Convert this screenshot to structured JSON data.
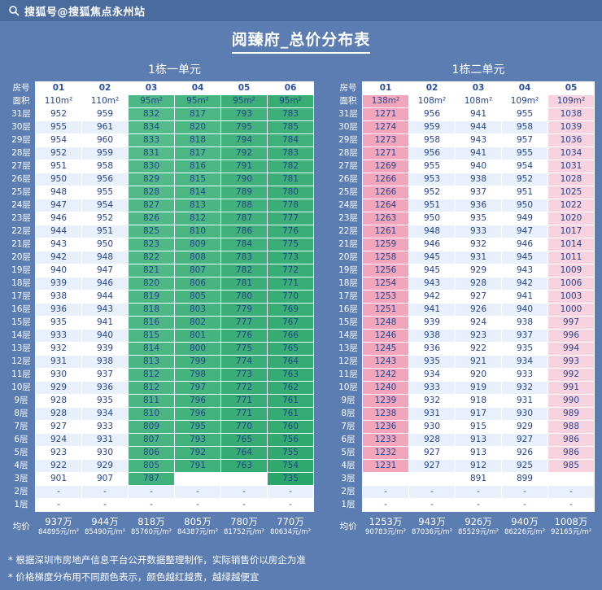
{
  "watermark": {
    "icon": "sohu-logo",
    "text": "搜狐号@搜狐焦点永州站"
  },
  "title": "阅臻府_总价分布表",
  "colors": {
    "background": "#5b7db1",
    "topbar": "#4a6b9e",
    "green_deep": "#28a569",
    "green_light": "#64c396",
    "pink_strong": "#f2a6bc",
    "pink_light": "#f8d2de",
    "cell_text": "#27448c",
    "stripe": "#e8f1fb"
  },
  "footnotes": [
    "* 根据深圳市房地产信息平台公开数据整理制作，实际销售价以房企为准",
    "* 价格梯度分布用不同颜色表示，颜色越红越贵，越绿越便宜"
  ],
  "chart_data": [
    {
      "type": "heatmap",
      "title": "1栋一单元",
      "room_header": "房号",
      "area_header": "面积",
      "avg_header": "均价",
      "columns": [
        "01",
        "02",
        "03",
        "04",
        "05",
        "06"
      ],
      "areas": [
        "110m²",
        "110m²",
        "95m²",
        "95m²",
        "95m²",
        "95m²"
      ],
      "floors": [
        "31层",
        "30层",
        "29层",
        "28层",
        "27层",
        "26层",
        "25层",
        "24层",
        "23层",
        "22层",
        "21层",
        "20层",
        "19层",
        "18层",
        "17层",
        "16层",
        "15层",
        "14层",
        "13层",
        "12层",
        "11层",
        "10层",
        "9层",
        "8层",
        "7层",
        "6层",
        "5层",
        "4层",
        "3层",
        "2层",
        "1层"
      ],
      "values": [
        [
          "952",
          "959",
          "832",
          "817",
          "793",
          "783"
        ],
        [
          "955",
          "961",
          "834",
          "820",
          "795",
          "785"
        ],
        [
          "954",
          "960",
          "833",
          "818",
          "794",
          "784"
        ],
        [
          "952",
          "959",
          "831",
          "817",
          "792",
          "783"
        ],
        [
          "951",
          "958",
          "830",
          "816",
          "791",
          "782"
        ],
        [
          "950",
          "956",
          "829",
          "815",
          "790",
          "781"
        ],
        [
          "948",
          "955",
          "828",
          "814",
          "789",
          "780"
        ],
        [
          "947",
          "954",
          "827",
          "813",
          "788",
          "778"
        ],
        [
          "946",
          "952",
          "826",
          "812",
          "787",
          "777"
        ],
        [
          "944",
          "951",
          "825",
          "810",
          "786",
          "776"
        ],
        [
          "943",
          "950",
          "823",
          "809",
          "784",
          "775"
        ],
        [
          "942",
          "948",
          "822",
          "808",
          "783",
          "773"
        ],
        [
          "940",
          "947",
          "821",
          "807",
          "782",
          "772"
        ],
        [
          "939",
          "946",
          "820",
          "806",
          "781",
          "771"
        ],
        [
          "938",
          "944",
          "819",
          "805",
          "780",
          "770"
        ],
        [
          "936",
          "943",
          "818",
          "803",
          "779",
          "769"
        ],
        [
          "935",
          "941",
          "816",
          "802",
          "777",
          "767"
        ],
        [
          "933",
          "940",
          "815",
          "801",
          "776",
          "766"
        ],
        [
          "932",
          "939",
          "814",
          "800",
          "775",
          "765"
        ],
        [
          "931",
          "938",
          "813",
          "799",
          "774",
          "764"
        ],
        [
          "930",
          "937",
          "812",
          "798",
          "773",
          "763"
        ],
        [
          "929",
          "936",
          "812",
          "797",
          "772",
          "762"
        ],
        [
          "928",
          "935",
          "811",
          "796",
          "771",
          "761"
        ],
        [
          "928",
          "934",
          "810",
          "796",
          "771",
          "761"
        ],
        [
          "927",
          "933",
          "809",
          "795",
          "770",
          "760"
        ],
        [
          "924",
          "931",
          "807",
          "793",
          "765",
          "756"
        ],
        [
          "923",
          "930",
          "806",
          "792",
          "764",
          "755"
        ],
        [
          "922",
          "929",
          "805",
          "791",
          "763",
          "754"
        ],
        [
          "901",
          "907",
          "787",
          "",
          "",
          "735"
        ],
        [
          "-",
          "-",
          "-",
          "-",
          "-",
          "-"
        ],
        [
          "-",
          "-",
          "-",
          "-",
          "-",
          "-"
        ]
      ],
      "avg": [
        {
          "wan": "937万",
          "unit": "84895元/m²"
        },
        {
          "wan": "944万",
          "unit": "85490元/m²"
        },
        {
          "wan": "818万",
          "unit": "85760元/m²"
        },
        {
          "wan": "805万",
          "unit": "84387元/m²"
        },
        {
          "wan": "780万",
          "unit": "81752元/m²"
        },
        {
          "wan": "770万",
          "unit": "80634元/m²"
        }
      ]
    },
    {
      "type": "heatmap",
      "title": "1栋二单元",
      "room_header": "房号",
      "area_header": "面积",
      "avg_header": "均价",
      "columns": [
        "01",
        "02",
        "03",
        "04",
        "05"
      ],
      "areas": [
        "138m²",
        "108m²",
        "108m²",
        "109m²",
        "109m²"
      ],
      "floors": [
        "31层",
        "30层",
        "29层",
        "28层",
        "27层",
        "26层",
        "25层",
        "24层",
        "23层",
        "22层",
        "21层",
        "20层",
        "19层",
        "18层",
        "17层",
        "16层",
        "15层",
        "14层",
        "13层",
        "12层",
        "11层",
        "10层",
        "9层",
        "8层",
        "7层",
        "6层",
        "5层",
        "4层",
        "3层",
        "2层",
        "1层"
      ],
      "values": [
        [
          "1271",
          "956",
          "941",
          "955",
          "1038"
        ],
        [
          "1274",
          "959",
          "944",
          "958",
          "1039"
        ],
        [
          "1273",
          "958",
          "943",
          "957",
          "1036"
        ],
        [
          "1271",
          "956",
          "941",
          "955",
          "1034"
        ],
        [
          "1269",
          "955",
          "940",
          "954",
          "1031"
        ],
        [
          "1266",
          "953",
          "938",
          "952",
          "1028"
        ],
        [
          "1266",
          "952",
          "937",
          "951",
          "1025"
        ],
        [
          "1264",
          "951",
          "936",
          "950",
          "1022"
        ],
        [
          "1263",
          "950",
          "935",
          "949",
          "1020"
        ],
        [
          "1261",
          "948",
          "933",
          "947",
          "1017"
        ],
        [
          "1259",
          "946",
          "932",
          "946",
          "1014"
        ],
        [
          "1258",
          "945",
          "931",
          "945",
          "1011"
        ],
        [
          "1256",
          "945",
          "929",
          "943",
          "1009"
        ],
        [
          "1254",
          "943",
          "928",
          "942",
          "1006"
        ],
        [
          "1253",
          "942",
          "927",
          "941",
          "1003"
        ],
        [
          "1251",
          "941",
          "926",
          "940",
          "1000"
        ],
        [
          "1248",
          "939",
          "924",
          "938",
          "997"
        ],
        [
          "1246",
          "938",
          "923",
          "937",
          "996"
        ],
        [
          "1245",
          "936",
          "922",
          "935",
          "994"
        ],
        [
          "1243",
          "935",
          "921",
          "934",
          "993"
        ],
        [
          "1242",
          "934",
          "920",
          "933",
          "992"
        ],
        [
          "1240",
          "933",
          "919",
          "932",
          "991"
        ],
        [
          "1239",
          "932",
          "918",
          "931",
          "990"
        ],
        [
          "1238",
          "931",
          "917",
          "930",
          "989"
        ],
        [
          "1236",
          "930",
          "915",
          "929",
          "988"
        ],
        [
          "1233",
          "928",
          "913",
          "927",
          "986"
        ],
        [
          "1232",
          "927",
          "913",
          "926",
          "986"
        ],
        [
          "1231",
          "927",
          "912",
          "925",
          "985"
        ],
        [
          "",
          "",
          "891",
          "899",
          ""
        ],
        [
          "-",
          "-",
          "-",
          "-",
          "-"
        ],
        [
          "-",
          "-",
          "-",
          "-",
          "-"
        ]
      ],
      "avg": [
        {
          "wan": "1253万",
          "unit": "90783元/m²"
        },
        {
          "wan": "943万",
          "unit": "87036元/m²"
        },
        {
          "wan": "926万",
          "unit": "85529元/m²"
        },
        {
          "wan": "940万",
          "unit": "86226元/m²"
        },
        {
          "wan": "1008万",
          "unit": "92165元/m²"
        }
      ]
    }
  ]
}
